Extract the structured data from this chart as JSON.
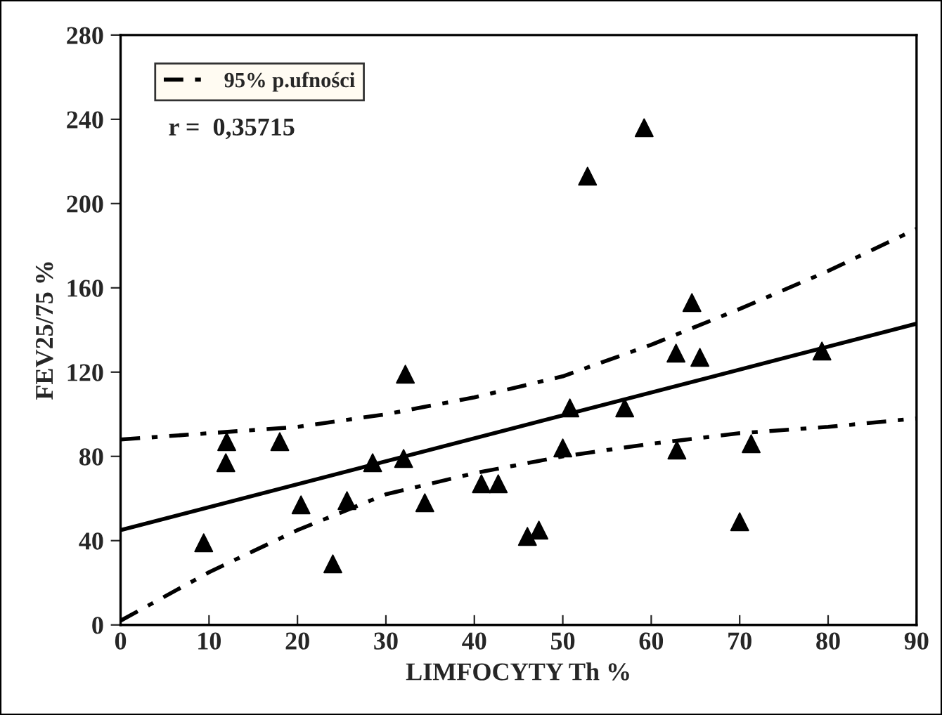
{
  "chart_data": {
    "type": "scatter",
    "xlabel": "LIMFOCYTY Th %",
    "ylabel": "FEV25/75 %",
    "xlim": [
      0,
      90
    ],
    "xticks": [
      0,
      10,
      20,
      30,
      40,
      50,
      60,
      70,
      80,
      90
    ],
    "ylim": [
      0,
      280
    ],
    "yticks": [
      0,
      40,
      80,
      120,
      160,
      200,
      240,
      280
    ],
    "grid": false,
    "legend": "top left",
    "annotations": [
      "r =  0,35715"
    ],
    "series": [
      {
        "color": "#000000",
        "marker": "triangle",
        "x": [
          9.4,
          11.9,
          12,
          18,
          20.4,
          24,
          25.6,
          28.5,
          32.2,
          32,
          34.4,
          40.8,
          42.7,
          46,
          47.3,
          50,
          50.8,
          52.8,
          57,
          59.2,
          62.8,
          62.9,
          64.6,
          65.5,
          70,
          71.3,
          79.3
        ],
        "values": [
          39,
          77,
          87,
          87,
          57,
          29,
          59,
          77,
          119,
          79,
          58,
          67,
          67,
          42,
          45,
          84,
          103,
          213,
          103,
          236,
          129,
          83,
          153,
          127,
          49,
          86,
          130
        ]
      },
      {
        "type": "line",
        "color": "#000000",
        "line_style": "solid",
        "x": [
          0,
          90
        ],
        "values": [
          45,
          143
        ]
      },
      {
        "type": "line",
        "name": "95% p.ufności",
        "color": "#000000",
        "line_style": "dashed",
        "x": [
          0,
          10,
          20,
          30,
          40,
          50,
          60,
          70,
          80,
          90
        ],
        "values": [
          88,
          91,
          94,
          100,
          108,
          118,
          133,
          150,
          168,
          188
        ]
      },
      {
        "type": "line",
        "color": "#000000",
        "line_style": "dashed",
        "x": [
          0,
          10,
          20,
          30,
          40,
          50,
          60,
          70,
          80,
          90
        ],
        "values": [
          2,
          25,
          45,
          62,
          72,
          80,
          86,
          91,
          94,
          98
        ]
      }
    ]
  }
}
